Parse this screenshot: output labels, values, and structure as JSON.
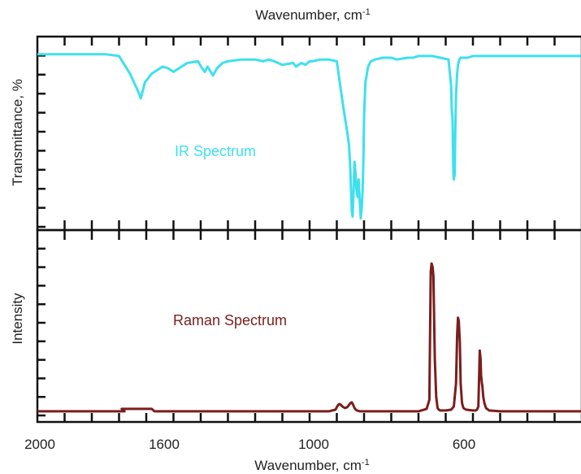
{
  "chart_data": [
    {
      "type": "line",
      "title": "",
      "xlabel_top": "Wavenumber, cm",
      "xlabel_top_sup": "-1",
      "ylabel": "Transmittance, %",
      "annotation": "IR Spectrum",
      "xlim": [
        2000,
        0
      ],
      "ylim": [
        0,
        100
      ],
      "series": [
        {
          "color": "#3ee0ef",
          "x": [
            2000,
            1750,
            1700,
            1660,
            1645,
            1630,
            1620,
            1605,
            1580,
            1560,
            1540,
            1520,
            1500,
            1450,
            1410,
            1395,
            1385,
            1375,
            1355,
            1340,
            1320,
            1300,
            1250,
            1200,
            1170,
            1150,
            1130,
            1100,
            1060,
            1050,
            1030,
            1015,
            1000,
            990,
            960,
            930,
            900,
            880,
            860,
            855,
            850,
            845,
            842,
            838,
            835,
            832,
            828,
            824,
            820,
            815,
            812,
            808,
            805,
            802,
            800,
            795,
            785,
            775,
            760,
            730,
            700,
            680,
            640,
            620,
            600,
            550,
            520,
            490,
            485,
            480,
            478,
            475,
            472,
            470,
            467,
            465,
            462,
            458,
            455,
            450,
            445,
            440,
            420,
            400,
            300,
            250,
            200,
            150,
            100,
            50,
            0
          ],
          "y": [
            96,
            96,
            95,
            85,
            80,
            75,
            71,
            80,
            85,
            87,
            89,
            88,
            86,
            91,
            92,
            88,
            86,
            89,
            84,
            88,
            91,
            92,
            93,
            93,
            92,
            93,
            92,
            90,
            91,
            89,
            91,
            90,
            92,
            92,
            93,
            93,
            92,
            70,
            50,
            44,
            30,
            7,
            4,
            20,
            35,
            30,
            20,
            15,
            25,
            10,
            3,
            10,
            20,
            38,
            60,
            80,
            89,
            92,
            93,
            94,
            94,
            93,
            94,
            94,
            95,
            95,
            94,
            93,
            86,
            78,
            65,
            60,
            30,
            25,
            28,
            50,
            73,
            85,
            90,
            93,
            94,
            94,
            94,
            95,
            95,
            95,
            95,
            95,
            95,
            95,
            95
          ]
        }
      ]
    },
    {
      "type": "line",
      "title": "",
      "xlabel": "Wavenumber, cm",
      "xlabel_sup": "-1",
      "ylabel": "Intensity",
      "annotation": "Raman Spectrum",
      "xlim": [
        2000,
        0
      ],
      "ylim": [
        0,
        100
      ],
      "x_ticks": [
        2000,
        1600,
        1000,
        600
      ],
      "series": [
        {
          "color": "#7a1e1e",
          "x": [
            2000,
            1700,
            1680,
            1690,
            1580,
            1570,
            950,
            930,
            905,
            900,
            895,
            890,
            885,
            880,
            870,
            862,
            855,
            850,
            845,
            840,
            835,
            830,
            825,
            815,
            800,
            700,
            600,
            590,
            570,
            560,
            555,
            552,
            548,
            545,
            540,
            535,
            530,
            525,
            520,
            500,
            480,
            470,
            462,
            458,
            455,
            452,
            448,
            445,
            440,
            435,
            425,
            400,
            390,
            385,
            380,
            378,
            375,
            372,
            370,
            367,
            365,
            362,
            358,
            352,
            340,
            300,
            200,
            100,
            0
          ],
          "y": [
            3,
            3,
            3,
            4.5,
            4.5,
            3,
            3,
            3,
            4,
            5.5,
            7,
            7.5,
            7,
            6,
            5,
            5.5,
            7,
            8,
            8.5,
            7,
            5,
            4,
            3.5,
            3,
            3,
            3,
            3,
            3.5,
            4.5,
            10,
            88,
            93,
            91,
            85,
            35,
            12,
            5,
            4,
            3.5,
            3.5,
            4,
            6,
            20,
            50,
            60,
            58,
            45,
            20,
            8,
            5,
            4,
            3.5,
            3.5,
            4,
            6,
            20,
            40,
            35,
            25,
            20,
            18,
            12,
            8,
            5,
            3.5,
            3,
            3,
            3,
            3
          ]
        }
      ]
    }
  ],
  "axis_labels": {
    "top_title": "Wavenumber, cm",
    "top_sup": "-1",
    "bottom_title": "Wavenumber, cm",
    "bottom_sup": "-1",
    "ir_ylabel": "Transmittance, %",
    "raman_ylabel": "Intensity",
    "ir_annotation": "IR Spectrum",
    "raman_annotation": "Raman Spectrum",
    "tick_labels": [
      "2000",
      "1600",
      "1000",
      "600"
    ]
  }
}
